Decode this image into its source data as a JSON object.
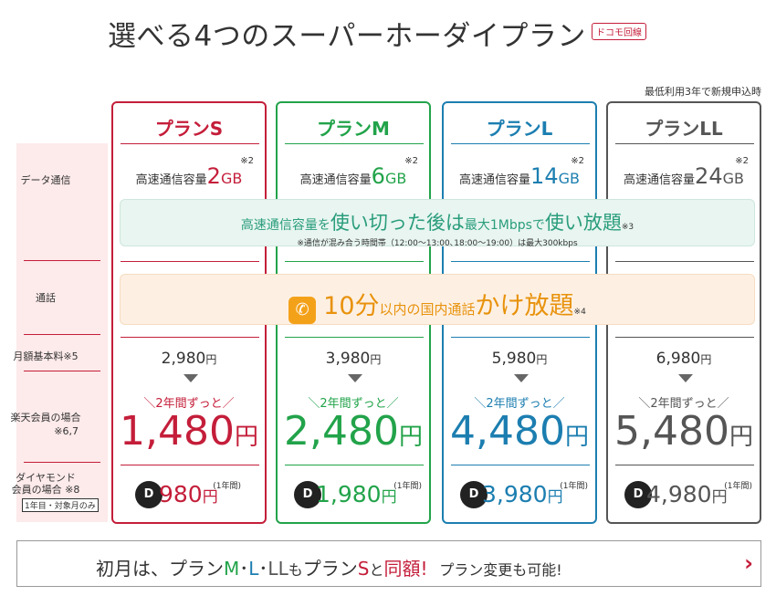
{
  "header": {
    "title": "選べる4つのスーパーホーダイプラン",
    "docomo_tag": "ドコモ回線",
    "min_note": "最低利用3年で新規申込時"
  },
  "labels": {
    "data": "データ通信",
    "call": "通話",
    "monthly": "月額基本料※5",
    "rakuten": "楽天会員の場合",
    "rakuten_note": "※6,7",
    "diamond_1": "ダイヤモンド",
    "diamond_2": "会員の場合 ※8",
    "first_year": "1年目・対象月のみ"
  },
  "colors": {
    "s": "#c41e3a",
    "m": "#22a34a",
    "l": "#1c7eb0",
    "ll": "#555555"
  },
  "plans": [
    {
      "name": "プランS",
      "cap_prefix": "高速通信容量",
      "cap_num": "2",
      "cap_unit": "GB",
      "cap_note": "※2",
      "base": "2,980",
      "yen": "円",
      "catch": "＼2年間ずっと／",
      "rakuten": "1,480",
      "diamond": "980",
      "diamond_note": "(1年間)"
    },
    {
      "name": "プランM",
      "cap_prefix": "高速通信容量",
      "cap_num": "6",
      "cap_unit": "GB",
      "cap_note": "※2",
      "base": "3,980",
      "yen": "円",
      "catch": "＼2年間ずっと／",
      "rakuten": "2,480",
      "diamond": "1,980",
      "diamond_note": "(1年間)"
    },
    {
      "name": "プランL",
      "cap_prefix": "高速通信容量",
      "cap_num": "14",
      "cap_unit": "GB",
      "cap_note": "※2",
      "base": "5,980",
      "yen": "円",
      "catch": "＼2年間ずっと／",
      "rakuten": "4,480",
      "diamond": "3,980",
      "diamond_note": "(1年間)"
    },
    {
      "name": "プランLL",
      "cap_prefix": "高速通信容量",
      "cap_num": "24",
      "cap_unit": "GB",
      "cap_note": "※2",
      "base": "6,980",
      "yen": "円",
      "catch": "＼2年間ずっと／",
      "rakuten": "5,480",
      "diamond": "4,980",
      "diamond_note": "(1年間)"
    }
  ],
  "green_banner": {
    "p1": "高速通信容量を",
    "b1": "使い切った後は",
    "p2": "最大1Mbpsで",
    "b2": "使い放題",
    "note": "※3",
    "sub": "※通信が混み合う時間帯（12:00〜13:00､18:00〜19:00）は最大300kbps"
  },
  "orange_banner": {
    "icon": "✆",
    "b1": "10分",
    "p1": "以内の国内通話",
    "b2": "かけ放題",
    "note": "※4"
  },
  "bottom": {
    "t1": "初月は、",
    "t2": "プラン",
    "t3": "M",
    "t4": "･",
    "t5": "L",
    "t6": "･",
    "t7": "LL",
    "t8": "も",
    "t9": "プラン",
    "t10": "S",
    "t11": "と",
    "t12": "同額!",
    "t13": "プラン変更も可能!",
    "chevron": "›"
  }
}
